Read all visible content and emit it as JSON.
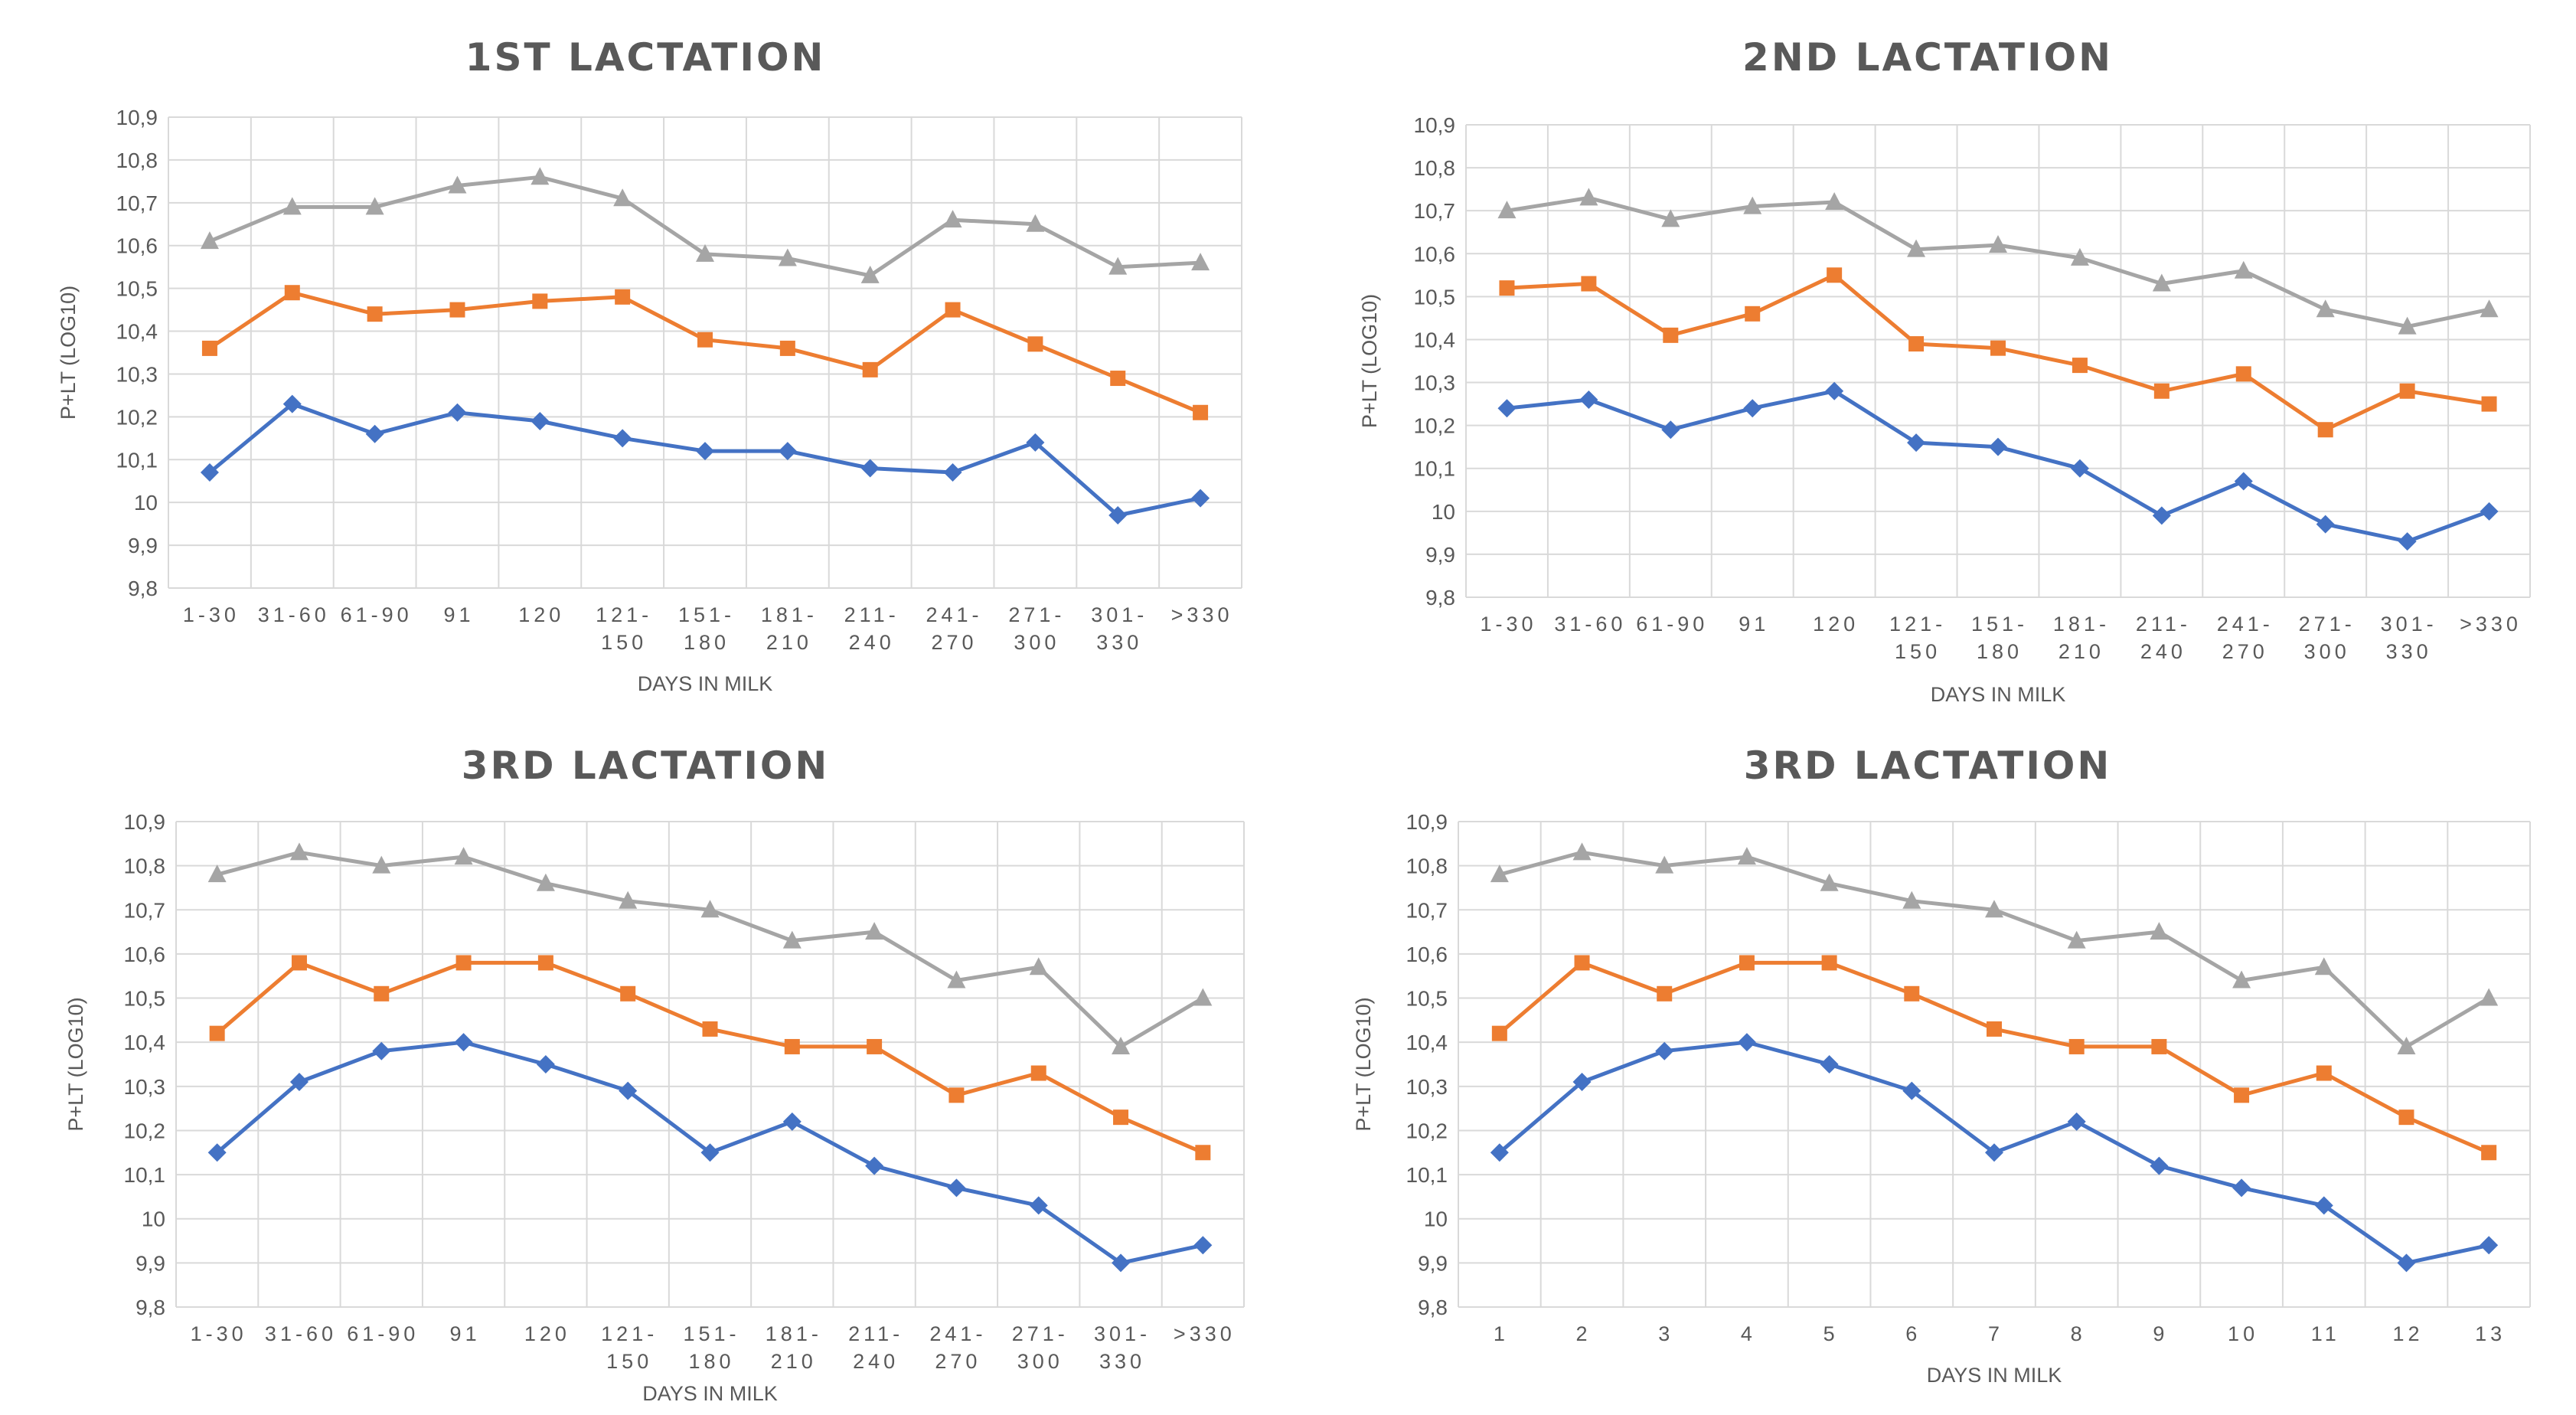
{
  "colors": {
    "blue": "#4472c4",
    "orange": "#ed7d31",
    "gray": "#a5a5a5",
    "grid": "#d9d9d9",
    "text": "#595959"
  },
  "chart_data": [
    {
      "type": "line",
      "title": "1ST LACTATION",
      "xlabel": "DAYS IN MILK",
      "ylabel": "P+LT (LOG10)",
      "ylim": [
        9.8,
        10.9
      ],
      "yticks": [
        "9,8",
        "9,9",
        "10",
        "10,1",
        "10,2",
        "10,3",
        "10,4",
        "10,5",
        "10,6",
        "10,7",
        "10,8",
        "10,9"
      ],
      "categories": [
        "1-30",
        "31-60",
        "61-90",
        "91",
        "120",
        "121-150",
        "151-180",
        "181-210",
        "211-240",
        "241-270",
        "271-300",
        "301-330",
        ">330"
      ],
      "category_lines": [
        [
          "1-30"
        ],
        [
          "31-60"
        ],
        [
          "61-90"
        ],
        [
          "91"
        ],
        [
          "120"
        ],
        [
          "121-",
          "150"
        ],
        [
          "151-",
          "180"
        ],
        [
          "181-",
          "210"
        ],
        [
          "211-",
          "240"
        ],
        [
          "241-",
          "270"
        ],
        [
          "271-",
          "300"
        ],
        [
          "301-",
          "330"
        ],
        [
          ">330"
        ]
      ],
      "grid": true,
      "series": [
        {
          "marker": "diamond",
          "color": "#4472c4",
          "values": [
            10.07,
            10.23,
            10.16,
            10.21,
            10.19,
            10.15,
            10.12,
            10.12,
            10.08,
            10.07,
            10.14,
            9.97,
            10.01
          ]
        },
        {
          "marker": "square",
          "color": "#ed7d31",
          "values": [
            10.36,
            10.49,
            10.44,
            10.45,
            10.47,
            10.48,
            10.38,
            10.36,
            10.31,
            10.45,
            10.37,
            10.29,
            10.21
          ]
        },
        {
          "marker": "triangle",
          "color": "#a5a5a5",
          "values": [
            10.61,
            10.69,
            10.69,
            10.74,
            10.76,
            10.71,
            10.58,
            10.57,
            10.53,
            10.66,
            10.65,
            10.55,
            10.56
          ]
        }
      ]
    },
    {
      "type": "line",
      "title": "2ND LACTATION",
      "xlabel": "DAYS IN MILK",
      "ylabel": "P+LT (LOG10)",
      "ylim": [
        9.8,
        10.9
      ],
      "yticks": [
        "9,8",
        "9,9",
        "10",
        "10,1",
        "10,2",
        "10,3",
        "10,4",
        "10,5",
        "10,6",
        "10,7",
        "10,8",
        "10,9"
      ],
      "categories": [
        "1-30",
        "31-60",
        "61-90",
        "91",
        "120",
        "121-150",
        "151-180",
        "181-210",
        "211-240",
        "241-270",
        "271-300",
        "301-330",
        ">330"
      ],
      "category_lines": [
        [
          "1-30"
        ],
        [
          "31-60"
        ],
        [
          "61-90"
        ],
        [
          "91"
        ],
        [
          "120"
        ],
        [
          "121-",
          "150"
        ],
        [
          "151-",
          "180"
        ],
        [
          "181-",
          "210"
        ],
        [
          "211-",
          "240"
        ],
        [
          "241-",
          "270"
        ],
        [
          "271-",
          "300"
        ],
        [
          "301-",
          "330"
        ],
        [
          ">330"
        ]
      ],
      "grid": true,
      "series": [
        {
          "marker": "diamond",
          "color": "#4472c4",
          "values": [
            10.24,
            10.26,
            10.19,
            10.24,
            10.28,
            10.16,
            10.15,
            10.1,
            9.99,
            10.07,
            9.97,
            9.93,
            10.0
          ]
        },
        {
          "marker": "square",
          "color": "#ed7d31",
          "values": [
            10.52,
            10.53,
            10.41,
            10.46,
            10.55,
            10.39,
            10.38,
            10.34,
            10.28,
            10.32,
            10.19,
            10.28,
            10.25
          ]
        },
        {
          "marker": "triangle",
          "color": "#a5a5a5",
          "values": [
            10.7,
            10.73,
            10.68,
            10.71,
            10.72,
            10.61,
            10.62,
            10.59,
            10.53,
            10.56,
            10.47,
            10.43,
            10.47
          ]
        }
      ]
    },
    {
      "type": "line",
      "title": "3RD LACTATION",
      "xlabel": "DAYS IN MILK",
      "ylabel": "P+LT (LOG10)",
      "ylim": [
        9.8,
        10.9
      ],
      "yticks": [
        "9,8",
        "9,9",
        "10",
        "10,1",
        "10,2",
        "10,3",
        "10,4",
        "10,5",
        "10,6",
        "10,7",
        "10,8",
        "10,9"
      ],
      "categories": [
        "1-30",
        "31-60",
        "61-90",
        "91",
        "120",
        "121-150",
        "151-180",
        "181-210",
        "211-240",
        "241-270",
        "271-300",
        "301-330",
        ">330"
      ],
      "category_lines": [
        [
          "1-30"
        ],
        [
          "31-60"
        ],
        [
          "61-90"
        ],
        [
          "91"
        ],
        [
          "120"
        ],
        [
          "121-",
          "150"
        ],
        [
          "151-",
          "180"
        ],
        [
          "181-",
          "210"
        ],
        [
          "211-",
          "240"
        ],
        [
          "241-",
          "270"
        ],
        [
          "271-",
          "300"
        ],
        [
          "301-",
          "330"
        ],
        [
          ">330"
        ]
      ],
      "grid": true,
      "series": [
        {
          "marker": "diamond",
          "color": "#4472c4",
          "values": [
            10.15,
            10.31,
            10.38,
            10.4,
            10.35,
            10.29,
            10.15,
            10.22,
            10.12,
            10.07,
            10.03,
            9.9,
            9.94
          ]
        },
        {
          "marker": "square",
          "color": "#ed7d31",
          "values": [
            10.42,
            10.58,
            10.51,
            10.58,
            10.58,
            10.51,
            10.43,
            10.39,
            10.39,
            10.28,
            10.33,
            10.23,
            10.15
          ]
        },
        {
          "marker": "triangle",
          "color": "#a5a5a5",
          "values": [
            10.78,
            10.83,
            10.8,
            10.82,
            10.76,
            10.72,
            10.7,
            10.63,
            10.65,
            10.54,
            10.57,
            10.39,
            10.5
          ]
        }
      ]
    },
    {
      "type": "line",
      "title": "3RD LACTATION",
      "xlabel": "DAYS IN MILK",
      "ylabel": "P+LT (LOG10)",
      "ylim": [
        9.8,
        10.9
      ],
      "yticks": [
        "9,8",
        "9,9",
        "10",
        "10,1",
        "10,2",
        "10,3",
        "10,4",
        "10,5",
        "10,6",
        "10,7",
        "10,8",
        "10,9"
      ],
      "categories": [
        "1",
        "2",
        "3",
        "4",
        "5",
        "6",
        "7",
        "8",
        "9",
        "10",
        "11",
        "12",
        "13"
      ],
      "category_lines": [
        [
          "1"
        ],
        [
          "2"
        ],
        [
          "3"
        ],
        [
          "4"
        ],
        [
          "5"
        ],
        [
          "6"
        ],
        [
          "7"
        ],
        [
          "8"
        ],
        [
          "9"
        ],
        [
          "10"
        ],
        [
          "11"
        ],
        [
          "12"
        ],
        [
          "13"
        ]
      ],
      "grid": true,
      "series": [
        {
          "marker": "diamond",
          "color": "#4472c4",
          "values": [
            10.15,
            10.31,
            10.38,
            10.4,
            10.35,
            10.29,
            10.15,
            10.22,
            10.12,
            10.07,
            10.03,
            9.9,
            9.94
          ]
        },
        {
          "marker": "square",
          "color": "#ed7d31",
          "values": [
            10.42,
            10.58,
            10.51,
            10.58,
            10.58,
            10.51,
            10.43,
            10.39,
            10.39,
            10.28,
            10.33,
            10.23,
            10.15
          ]
        },
        {
          "marker": "triangle",
          "color": "#a5a5a5",
          "values": [
            10.78,
            10.83,
            10.8,
            10.82,
            10.76,
            10.72,
            10.7,
            10.63,
            10.65,
            10.54,
            10.57,
            10.39,
            10.5
          ]
        }
      ]
    }
  ]
}
